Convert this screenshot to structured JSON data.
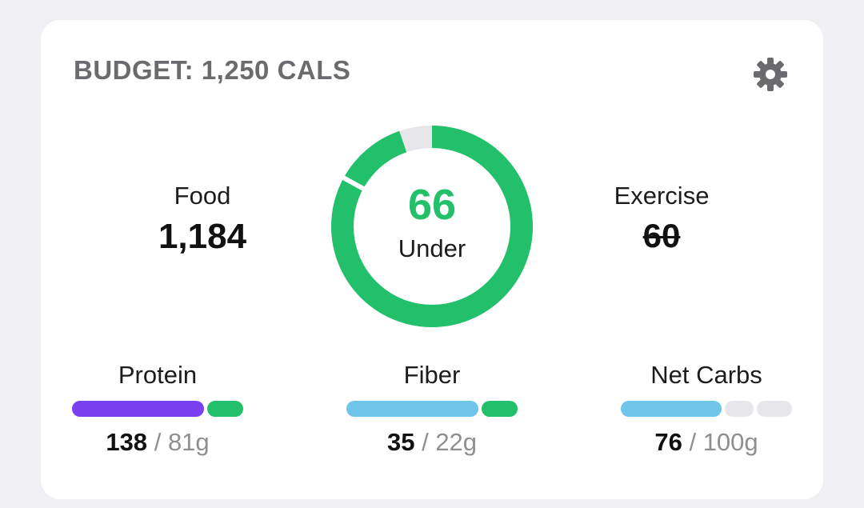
{
  "header": {
    "title": "BUDGET: 1,250 CALS",
    "settings_icon": "gear-icon"
  },
  "food": {
    "label": "Food",
    "value": "1,184"
  },
  "exercise": {
    "label": "Exercise",
    "value": "60"
  },
  "remaining": {
    "value": "66",
    "label": "Under",
    "progress_fraction": 0.947
  },
  "macros": [
    {
      "label": "Protein",
      "current": "138",
      "separator": "/",
      "goal": "81g"
    },
    {
      "label": "Fiber",
      "current": "35",
      "separator": "/",
      "goal": "22g"
    },
    {
      "label": "Net Carbs",
      "current": "76",
      "separator": "/",
      "goal": "100g"
    }
  ],
  "colors": {
    "green": "#22c06a",
    "purple": "#7a3ff0",
    "blue": "#6fc4ea",
    "track": "#e6e6ea",
    "title_gray": "#6b6b6f"
  }
}
